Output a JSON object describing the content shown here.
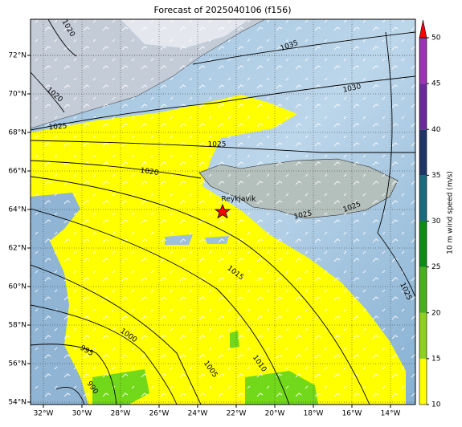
{
  "title": "Forecast of 2025040106 (f156)",
  "map": {
    "lon_ticks": [
      "32°W",
      "30°W",
      "28°W",
      "26°W",
      "24°W",
      "22°W",
      "20°W",
      "18°W",
      "16°W",
      "14°W"
    ],
    "lat_ticks": [
      "72°N",
      "70°N",
      "68°N",
      "66°N",
      "64°N",
      "62°N",
      "60°N",
      "58°N",
      "56°N",
      "54°N"
    ],
    "city": "Reykjavik",
    "contour_labels": [
      "1020",
      "1020",
      "1025",
      "1035",
      "1030",
      "1025",
      "1020",
      "1025",
      "1025",
      "1015",
      "1000",
      "995",
      "990",
      "1005",
      "1010",
      "1025"
    ]
  },
  "colorbar": {
    "label": "10 m wind speed (m/s)",
    "lim": [
      10,
      50
    ],
    "ticks": [
      10,
      15,
      20,
      25,
      30,
      35,
      40,
      45,
      50
    ],
    "colors": [
      "#ffff00",
      "#8fd01c",
      "#4caf1e",
      "#0c8c16",
      "#1c6b7c",
      "#1f3566",
      "#6b2a9a",
      "#9b34b2"
    ],
    "extend_color": "#ff0000"
  }
}
